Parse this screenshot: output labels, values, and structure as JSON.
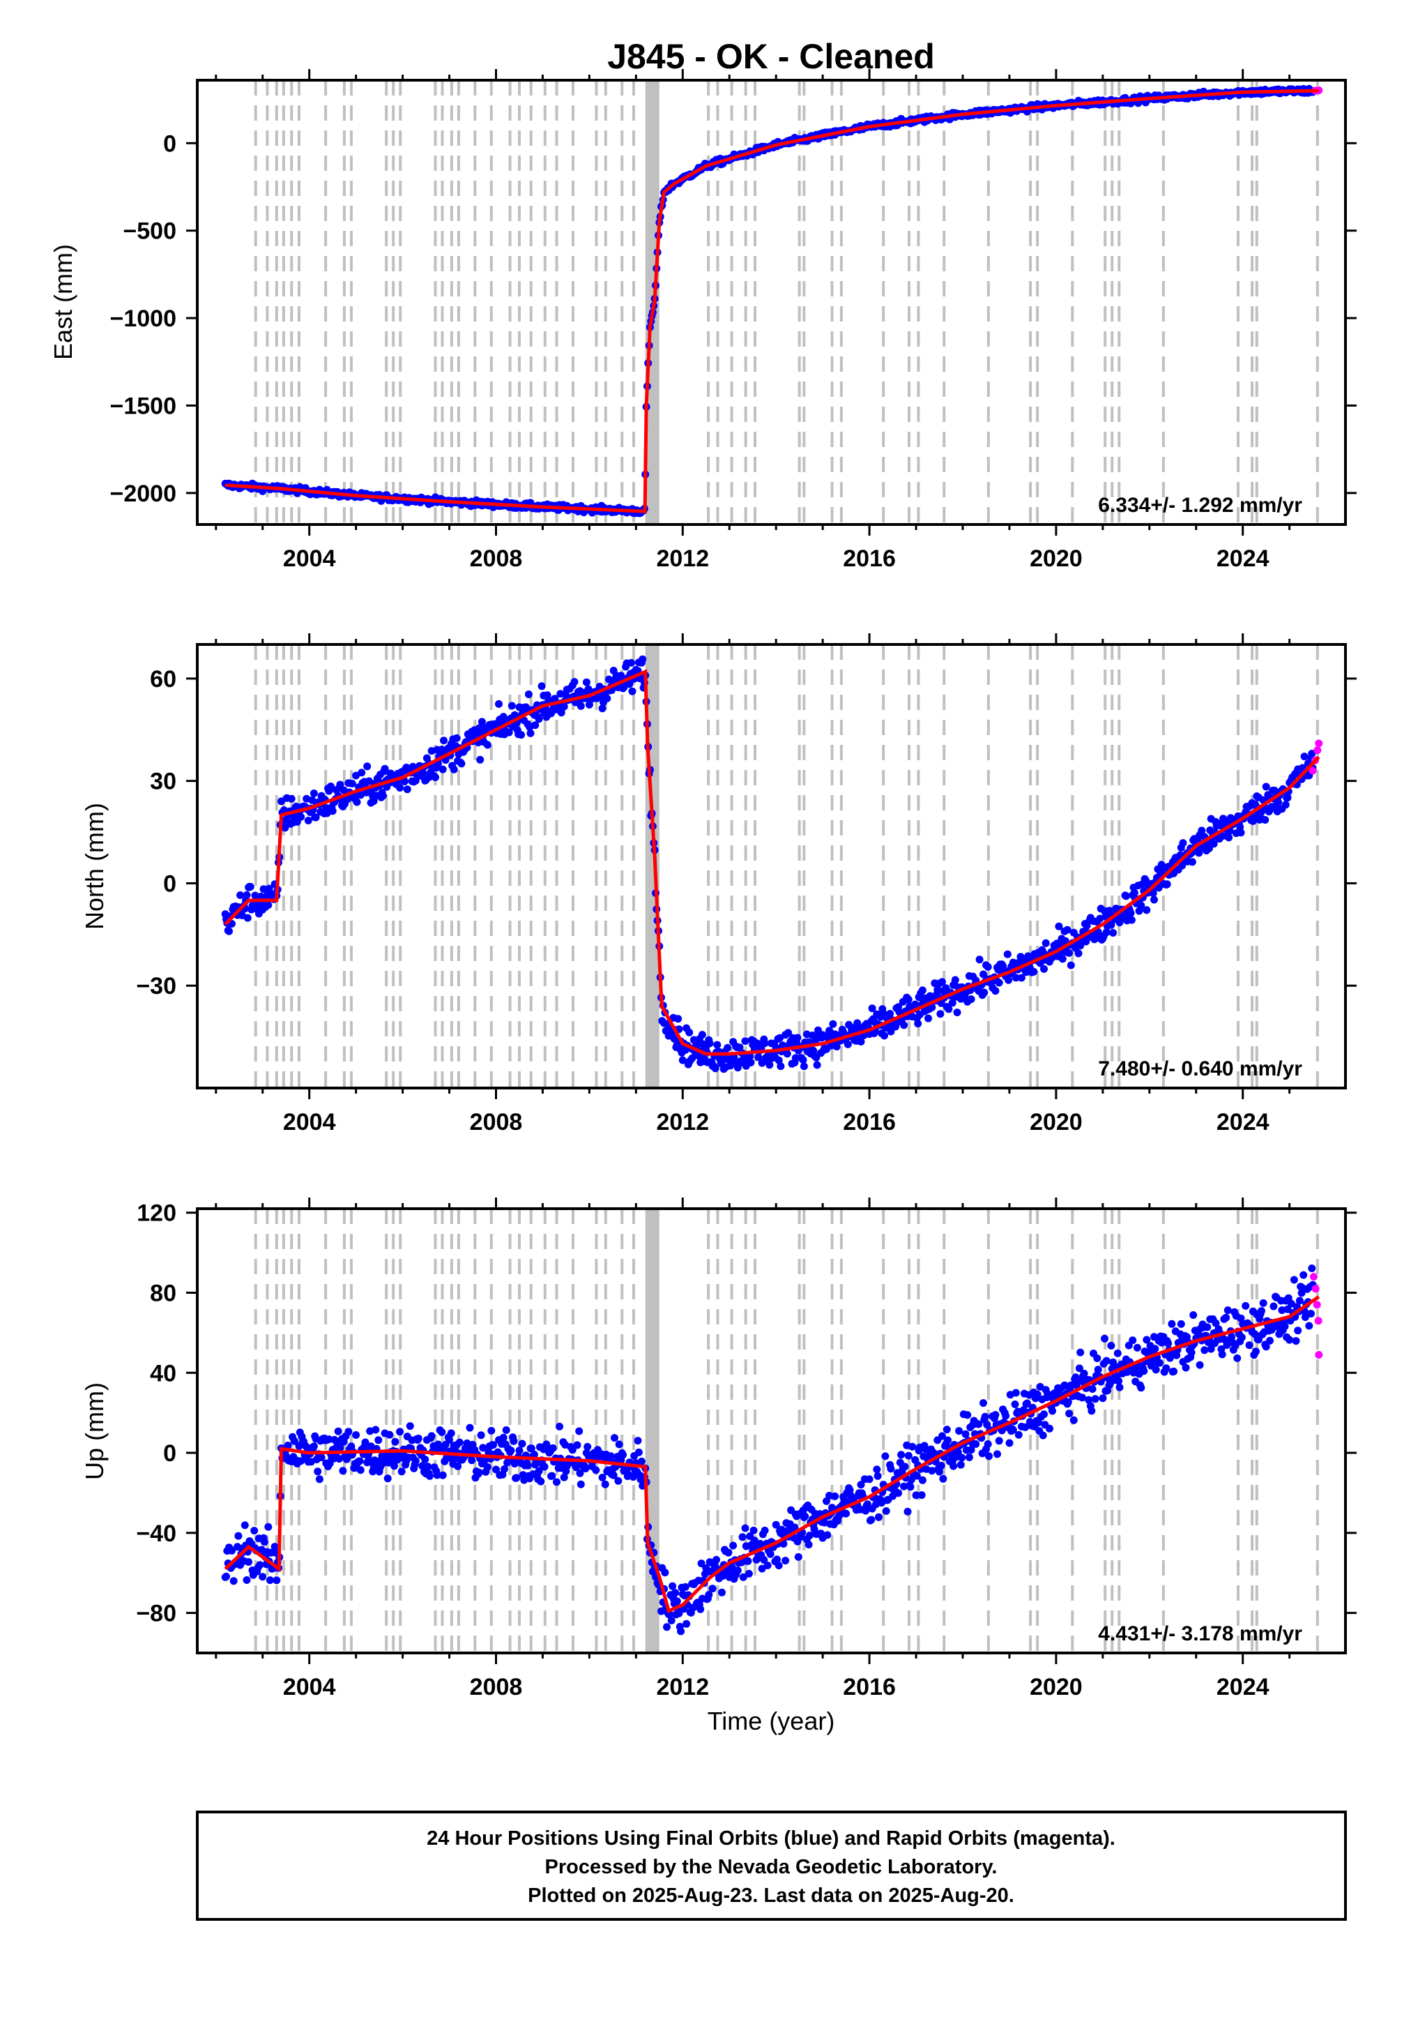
{
  "title": "J845  - OK - Cleaned",
  "footer": {
    "line1": "24 Hour Positions Using Final Orbits (blue) and Rapid Orbits (magenta).",
    "line2": "Processed by the Nevada Geodetic Laboratory.",
    "line3": "Plotted on 2025-Aug-23. Last data on 2025-Aug-20."
  },
  "colors": {
    "final_orbits": "#0000ff",
    "rapid_orbits": "#ff00ff",
    "model": "#ff0000",
    "event_lines": "#c0c0c0"
  },
  "chart_data": [
    {
      "type": "scatter",
      "ylabel": "East (mm)",
      "xlabel": "",
      "xlim": [
        2001.6,
        2026.2
      ],
      "ylim": [
        -2180,
        360
      ],
      "xticks": [
        2004,
        2008,
        2012,
        2016,
        2020,
        2024
      ],
      "yticks": [
        -2000,
        -1500,
        -1000,
        -500,
        0
      ],
      "ytick_labels": [
        "−2000",
        "−1500",
        "−1000",
        "−500",
        "0"
      ],
      "xtick_labels": [
        "2004",
        "2008",
        "2012",
        "2016",
        "2020",
        "2024"
      ],
      "rate_label": "6.334+/- 1.292 mm/yr",
      "legend": "none",
      "grid": false,
      "trend": {
        "x": [
          2002.2,
          2003.4,
          2005.0,
          2007.0,
          2009.0,
          2011.19,
          2011.22,
          2011.3,
          2011.4,
          2011.5,
          2011.6,
          2011.8,
          2012.5,
          2014.0,
          2016.0,
          2018.0,
          2020.0,
          2022.0,
          2024.0,
          2025.63
        ],
        "y": [
          -1955,
          -1975,
          -2015,
          -2050,
          -2080,
          -2105,
          -1500,
          -1050,
          -900,
          -450,
          -280,
          -235,
          -130,
          -10,
          95,
          165,
          215,
          255,
          292,
          300
        ]
      },
      "scatter": {
        "amplitude": 12
      },
      "rapid_orbits": {
        "x": [
          2025.55,
          2025.63
        ],
        "y": [
          300,
          302
        ]
      }
    },
    {
      "type": "scatter",
      "ylabel": "North (mm)",
      "xlabel": "",
      "xlim": [
        2001.6,
        2026.2
      ],
      "ylim": [
        -60,
        70
      ],
      "xticks": [
        2004,
        2008,
        2012,
        2016,
        2020,
        2024
      ],
      "yticks": [
        -30,
        0,
        30,
        60
      ],
      "ytick_labels": [
        "−30",
        "0",
        "30",
        "60"
      ],
      "xtick_labels": [
        "2004",
        "2008",
        "2012",
        "2016",
        "2020",
        "2024"
      ],
      "rate_label": "7.480+/- 0.640 mm/yr",
      "legend": "none",
      "grid": false,
      "trend": {
        "x": [
          2002.2,
          2002.7,
          2003.3,
          2003.4,
          2004.0,
          2005.0,
          2006.0,
          2007.0,
          2008.0,
          2009.0,
          2010.0,
          2011.2,
          2011.25,
          2011.4,
          2011.55,
          2012.0,
          2012.5,
          2013.0,
          2014.0,
          2015.0,
          2016.0,
          2017.0,
          2018.0,
          2019.0,
          2020.0,
          2021.0,
          2022.0,
          2023.0,
          2024.0,
          2025.0,
          2025.63
        ],
        "y": [
          -12,
          -5,
          -5,
          20,
          22,
          27,
          31,
          38,
          45,
          52,
          55,
          62,
          40,
          8,
          -36,
          -47,
          -50,
          -50,
          -49,
          -47,
          -43,
          -37,
          -31,
          -26,
          -20,
          -12,
          -2,
          11,
          19,
          28,
          37
        ]
      },
      "scatter": {
        "amplitude": 3.5
      },
      "rapid_orbits": {
        "x": [
          2025.5,
          2025.55,
          2025.6,
          2025.63
        ],
        "y": [
          33,
          36,
          39,
          41
        ]
      }
    },
    {
      "type": "scatter",
      "ylabel": "Up (mm)",
      "xlabel": "Time (year)",
      "xlim": [
        2001.6,
        2026.2
      ],
      "ylim": [
        -100,
        122
      ],
      "xticks": [
        2004,
        2008,
        2012,
        2016,
        2020,
        2024
      ],
      "yticks": [
        -80,
        -40,
        0,
        40,
        80,
        120
      ],
      "ytick_labels": [
        "−80",
        "−40",
        "0",
        "40",
        "80",
        "120"
      ],
      "xtick_labels": [
        "2004",
        "2008",
        "2012",
        "2016",
        "2020",
        "2024"
      ],
      "rate_label": "4.431+/- 3.178 mm/yr",
      "legend": "none",
      "grid": false,
      "trend": {
        "x": [
          2002.2,
          2002.7,
          2003.0,
          2003.35,
          2003.4,
          2004.0,
          2006.0,
          2008.0,
          2010.0,
          2011.2,
          2011.25,
          2011.5,
          2011.7,
          2012.0,
          2012.6,
          2013.0,
          2014.0,
          2015.0,
          2016.0,
          2017.0,
          2018.0,
          2019.0,
          2020.0,
          2021.0,
          2022.0,
          2023.0,
          2024.0,
          2025.0,
          2025.63
        ],
        "y": [
          -58,
          -47,
          -52,
          -58,
          2,
          0,
          1,
          -2,
          -4,
          -7,
          -45,
          -62,
          -79,
          -76,
          -62,
          -55,
          -45,
          -32,
          -22,
          -8,
          5,
          15,
          26,
          38,
          48,
          56,
          62,
          68,
          78
        ]
      },
      "scatter": {
        "amplitude": 9
      },
      "rapid_orbits": {
        "x": [
          2025.52,
          2025.56,
          2025.59,
          2025.62,
          2025.63
        ],
        "y": [
          88,
          82,
          74,
          66,
          49
        ]
      }
    }
  ]
}
